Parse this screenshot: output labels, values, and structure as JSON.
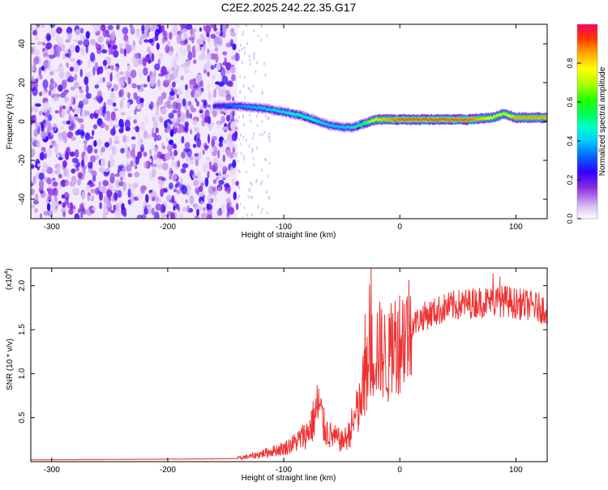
{
  "title": "C2E2.2025.242.22.35.G17",
  "chart_data": [
    {
      "type": "heatmap",
      "title": "C2E2.2025.242.22.35.G17",
      "xlabel": "Height of straight line (km)",
      "ylabel": "Frequency (Hz)",
      "xlim": [
        -318,
        127
      ],
      "ylim": [
        -50,
        50
      ],
      "xticks": [
        -300,
        -200,
        -100,
        0,
        100
      ],
      "xtick_labels": [
        "-300",
        "-200",
        "-100",
        "0",
        "100"
      ],
      "yticks": [
        -40,
        -20,
        0,
        20,
        40
      ],
      "ytick_labels": [
        "-40",
        "-20",
        "0",
        "20",
        "40"
      ],
      "noise_region_x": [
        -318,
        -140
      ],
      "ridge": {
        "x": [
          -160,
          -140,
          -120,
          -100,
          -85,
          -70,
          -60,
          -50,
          -40,
          -30,
          -20,
          0,
          20,
          40,
          60,
          80,
          90,
          100,
          127
        ],
        "freq": [
          8,
          8,
          7,
          5,
          3,
          0,
          -2,
          -3,
          -3,
          -1,
          1,
          1,
          1,
          1,
          1,
          2,
          4,
          2,
          2
        ],
        "amplitude": [
          0.25,
          0.35,
          0.4,
          0.45,
          0.5,
          0.45,
          0.4,
          0.4,
          0.45,
          0.6,
          0.8,
          0.9,
          0.9,
          0.9,
          0.9,
          0.75,
          0.7,
          0.85,
          0.85
        ]
      },
      "colorbar": {
        "label": "Normalized spectral amplitude",
        "range": [
          0,
          1
        ],
        "ticks": [
          0.0,
          0.2,
          0.4,
          0.6,
          0.8
        ],
        "tick_labels": [
          "0.0",
          "0.2",
          "0.4",
          "0.6",
          "0.8"
        ]
      }
    },
    {
      "type": "line",
      "xlabel": "Height of straight line (km)",
      "ylabel": "SNR (10 * v/v)",
      "y_multiplier": "(x10",
      "y_multiplier_exp": "4",
      "y_multiplier_close": ")",
      "xlim": [
        -318,
        127
      ],
      "ylim": [
        0,
        22000
      ],
      "xticks": [
        -300,
        -200,
        -100,
        0,
        100
      ],
      "xtick_labels": [
        "-300",
        "-200",
        "-100",
        "0",
        "100"
      ],
      "yticks": [
        5000,
        10000,
        15000,
        20000
      ],
      "ytick_labels": [
        "0.5",
        "1.0",
        "1.5",
        "2.0"
      ],
      "color": "#ee3333",
      "series": {
        "name": "SNR",
        "x": [
          -318,
          -250,
          -180,
          -140,
          -125,
          -110,
          -100,
          -90,
          -80,
          -75,
          -70,
          -65,
          -60,
          -50,
          -45,
          -40,
          -35,
          -30,
          -25,
          -20,
          -15,
          -10,
          -5,
          0,
          10,
          20,
          30,
          40,
          50,
          60,
          70,
          80,
          90,
          100,
          110,
          120,
          127
        ],
        "y": [
          200,
          250,
          300,
          350,
          700,
          1200,
          1500,
          2200,
          3200,
          4500,
          6500,
          3800,
          3000,
          2300,
          2800,
          4500,
          6000,
          9000,
          12000,
          13000,
          12500,
          11500,
          13500,
          14000,
          15500,
          16500,
          17000,
          17500,
          17800,
          18000,
          18200,
          18100,
          18300,
          18000,
          17800,
          17500,
          17300
        ]
      }
    }
  ]
}
